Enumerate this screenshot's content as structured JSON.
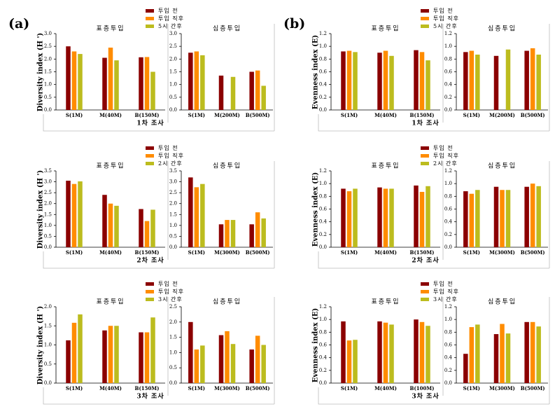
{
  "chart_data": [
    {
      "type": "bar",
      "label": "(a)",
      "ylabel": "Diversity index (H ')",
      "footer": "1차 조사",
      "series": [
        {
          "name": "투입 전",
          "color": "#8b0000"
        },
        {
          "name": "투입 직후",
          "color": "#ff8c00"
        },
        {
          "name": "5시 간후",
          "color": "#bcbc1e"
        }
      ],
      "subplots": [
        {
          "title": "표층투입",
          "categories": [
            "S(1M)",
            "M(40M)",
            "B(150M)"
          ],
          "ylim": [
            0,
            3
          ],
          "yticks": [
            {
              "value": 0,
              "label": "0.0"
            },
            0.5,
            {
              "value": 1,
              "label": "1.0"
            },
            1.5,
            {
              "value": 2,
              "label": "2.0"
            },
            2.5,
            {
              "value": 3,
              "label": "3.0"
            }
          ],
          "values": [
            [
              2.5,
              2.05,
              2.07
            ],
            [
              2.3,
              2.45,
              2.08
            ],
            [
              2.2,
              1.95,
              1.5
            ]
          ]
        },
        {
          "title": "심층투입",
          "categories": [
            "S(1M)",
            "M(200M)",
            "B(500M)"
          ],
          "ylim": [
            0,
            3
          ],
          "yticks": [
            {
              "value": 0,
              "label": "0.0"
            },
            0.5,
            {
              "value": 1,
              "label": "1.0"
            },
            1.5,
            {
              "value": 2,
              "label": "2.0"
            },
            2.5,
            {
              "value": 3,
              "label": "3.0"
            }
          ],
          "values": [
            [
              2.25,
              1.35,
              1.5
            ],
            [
              2.3,
              null,
              1.55
            ],
            [
              2.15,
              1.3,
              0.95
            ]
          ]
        }
      ]
    },
    {
      "type": "bar",
      "label": "(b)",
      "ylabel": "Evenness index (E)",
      "footer": "1차 조사",
      "series": [
        {
          "name": "투입 전",
          "color": "#8b0000"
        },
        {
          "name": "투입 직후",
          "color": "#ff8c00"
        },
        {
          "name": "5시 간후",
          "color": "#bcbc1e"
        }
      ],
      "subplots": [
        {
          "title": "표층투입",
          "categories": [
            "S(1M)",
            "M(40M)",
            "B(150M)"
          ],
          "ylim": [
            0,
            1.2
          ],
          "yticks": [
            {
              "value": 0,
              "label": "0.0"
            },
            0.2,
            0.4,
            0.6,
            0.8,
            {
              "value": 1,
              "label": "1.0"
            },
            1.2
          ],
          "values": [
            [
              0.92,
              0.9,
              0.94
            ],
            [
              0.93,
              0.93,
              0.91
            ],
            [
              0.91,
              0.85,
              0.78
            ]
          ]
        },
        {
          "title": "심층투입",
          "categories": [
            "S(1M)",
            "M(200M)",
            "B(500M)"
          ],
          "ylim": [
            0,
            1.2
          ],
          "yticks": [
            {
              "value": 0,
              "label": "0.0"
            },
            0.2,
            0.4,
            0.6,
            0.8,
            {
              "value": 1,
              "label": "1.0"
            },
            1.2
          ],
          "values": [
            [
              0.91,
              0.85,
              0.93
            ],
            [
              0.93,
              null,
              0.97
            ],
            [
              0.87,
              0.95,
              0.87
            ]
          ]
        }
      ]
    },
    {
      "type": "bar",
      "ylabel": "Diversity index (H ')",
      "footer": "2차 조사",
      "series": [
        {
          "name": "투입 전",
          "color": "#8b0000"
        },
        {
          "name": "투입 직후",
          "color": "#ff8c00"
        },
        {
          "name": "2시 간후",
          "color": "#bcbc1e"
        }
      ],
      "subplots": [
        {
          "title": "표층투입",
          "categories": [
            "S(1M)",
            "M(40M)",
            "B(150M)"
          ],
          "ylim": [
            0,
            3.5
          ],
          "yticks": [
            {
              "value": 0,
              "label": "0.0"
            },
            0.5,
            {
              "value": 1,
              "label": "1.0"
            },
            1.5,
            {
              "value": 2,
              "label": "2.0"
            },
            2.5,
            {
              "value": 3,
              "label": "3.0"
            },
            3.5
          ],
          "values": [
            [
              3.05,
              2.4,
              1.75
            ],
            [
              2.9,
              2.0,
              1.2
            ],
            [
              3.02,
              1.9,
              1.72
            ]
          ]
        },
        {
          "title": "심층투입",
          "categories": [
            "S(1M)",
            "M(300M)",
            "B(500M)"
          ],
          "ylim": [
            0,
            3.5
          ],
          "yticks": [
            {
              "value": 0,
              "label": "0.0"
            },
            0.5,
            {
              "value": 1,
              "label": "1.0"
            },
            1.5,
            {
              "value": 2,
              "label": "2.0"
            },
            2.5,
            {
              "value": 3,
              "label": "3.0"
            },
            3.5
          ],
          "values": [
            [
              3.2,
              1.05,
              1.05
            ],
            [
              2.75,
              1.25,
              1.6
            ],
            [
              2.9,
              1.25,
              1.32
            ]
          ]
        }
      ]
    },
    {
      "type": "bar",
      "ylabel": "Evenness index (E)",
      "footer": "2차 조사",
      "series": [
        {
          "name": "투입 전",
          "color": "#8b0000"
        },
        {
          "name": "투입 직후",
          "color": "#ff8c00"
        },
        {
          "name": "2시 간후",
          "color": "#bcbc1e"
        }
      ],
      "subplots": [
        {
          "title": "표층투입",
          "categories": [
            "S(1M)",
            "M(40M)",
            "B(150M)"
          ],
          "ylim": [
            0,
            1.2
          ],
          "yticks": [
            {
              "value": 0,
              "label": "0.0"
            },
            0.2,
            0.4,
            0.6,
            0.8,
            {
              "value": 1,
              "label": "1.0"
            },
            1.2
          ],
          "values": [
            [
              0.92,
              0.94,
              0.97
            ],
            [
              0.88,
              0.92,
              0.87
            ],
            [
              0.92,
              0.92,
              0.96
            ]
          ]
        },
        {
          "title": "심층투입",
          "categories": [
            "S(1M)",
            "M(300M)",
            "B(500M)"
          ],
          "ylim": [
            0,
            1.2
          ],
          "yticks": [
            {
              "value": 0,
              "label": "0.0"
            },
            0.2,
            0.4,
            0.6,
            0.8,
            {
              "value": 1,
              "label": "1.0"
            },
            1.2
          ],
          "values": [
            [
              0.88,
              0.95,
              0.95
            ],
            [
              0.84,
              0.9,
              1.0
            ],
            [
              0.9,
              0.9,
              0.96
            ]
          ]
        }
      ]
    },
    {
      "type": "bar",
      "ylabel": "Diversity index (H ')",
      "footer": "3차 조사",
      "series": [
        {
          "name": "투입 전",
          "color": "#8b0000"
        },
        {
          "name": "투입 직후",
          "color": "#ff8c00"
        },
        {
          "name": "3시 간후",
          "color": "#bcbc1e"
        }
      ],
      "subplots": [
        {
          "title": "표층투입",
          "categories": [
            "S(1M)",
            "M(40M)",
            "B(150M)"
          ],
          "ylim": [
            0,
            2
          ],
          "yticks": [
            {
              "value": 0,
              "label": "0.0"
            },
            0.5,
            {
              "value": 1,
              "label": "1.0"
            },
            1.5,
            {
              "value": 2,
              "label": "2.0"
            }
          ],
          "values": [
            [
              1.12,
              1.38,
              1.33
            ],
            [
              1.58,
              1.5,
              1.33
            ],
            [
              1.8,
              1.5,
              1.72
            ]
          ]
        },
        {
          "title": "심층투입",
          "categories": [
            "S(1M)",
            "M(300M)",
            "B(500M)"
          ],
          "ylim": [
            0,
            2.5
          ],
          "yticks": [
            {
              "value": 0,
              "label": "0.0"
            },
            0.5,
            {
              "value": 1,
              "label": "1.0"
            },
            1.5,
            {
              "value": 2,
              "label": "2.0"
            },
            2.5
          ],
          "values": [
            [
              2.0,
              1.57,
              1.1
            ],
            [
              1.1,
              1.7,
              1.55
            ],
            [
              1.23,
              1.28,
              1.25
            ]
          ]
        }
      ]
    },
    {
      "type": "bar",
      "ylabel": "Evenness index (E)",
      "footer": "3차 조사",
      "series": [
        {
          "name": "투입 전",
          "color": "#8b0000"
        },
        {
          "name": "투입 직후",
          "color": "#ff8c00"
        },
        {
          "name": "3시 간후",
          "color": "#bcbc1e"
        }
      ],
      "subplots": [
        {
          "title": "표층투입",
          "categories": [
            "S(1M)",
            "M(40M)",
            "B(100M)"
          ],
          "ylim": [
            0,
            1.2
          ],
          "yticks": [
            {
              "value": 0,
              "label": "0.0"
            },
            0.2,
            0.4,
            0.6,
            0.8,
            {
              "value": 1,
              "label": "1.0"
            },
            1.2
          ],
          "values": [
            [
              0.97,
              0.97,
              1.0
            ],
            [
              0.67,
              0.95,
              0.96
            ],
            [
              0.68,
              0.92,
              0.9
            ]
          ]
        },
        {
          "title": "심층투입",
          "categories": [
            "S(1M)",
            "M(300M)",
            "B(500M)"
          ],
          "ylim": [
            0,
            1.2
          ],
          "yticks": [
            {
              "value": 0,
              "label": "0.0"
            },
            0.2,
            0.4,
            0.6,
            0.8,
            {
              "value": 1,
              "label": "1.0"
            },
            1.2
          ],
          "values": [
            [
              0.46,
              0.77,
              0.96
            ],
            [
              0.88,
              0.93,
              0.96
            ],
            [
              0.92,
              0.78,
              0.89
            ]
          ]
        }
      ]
    }
  ]
}
